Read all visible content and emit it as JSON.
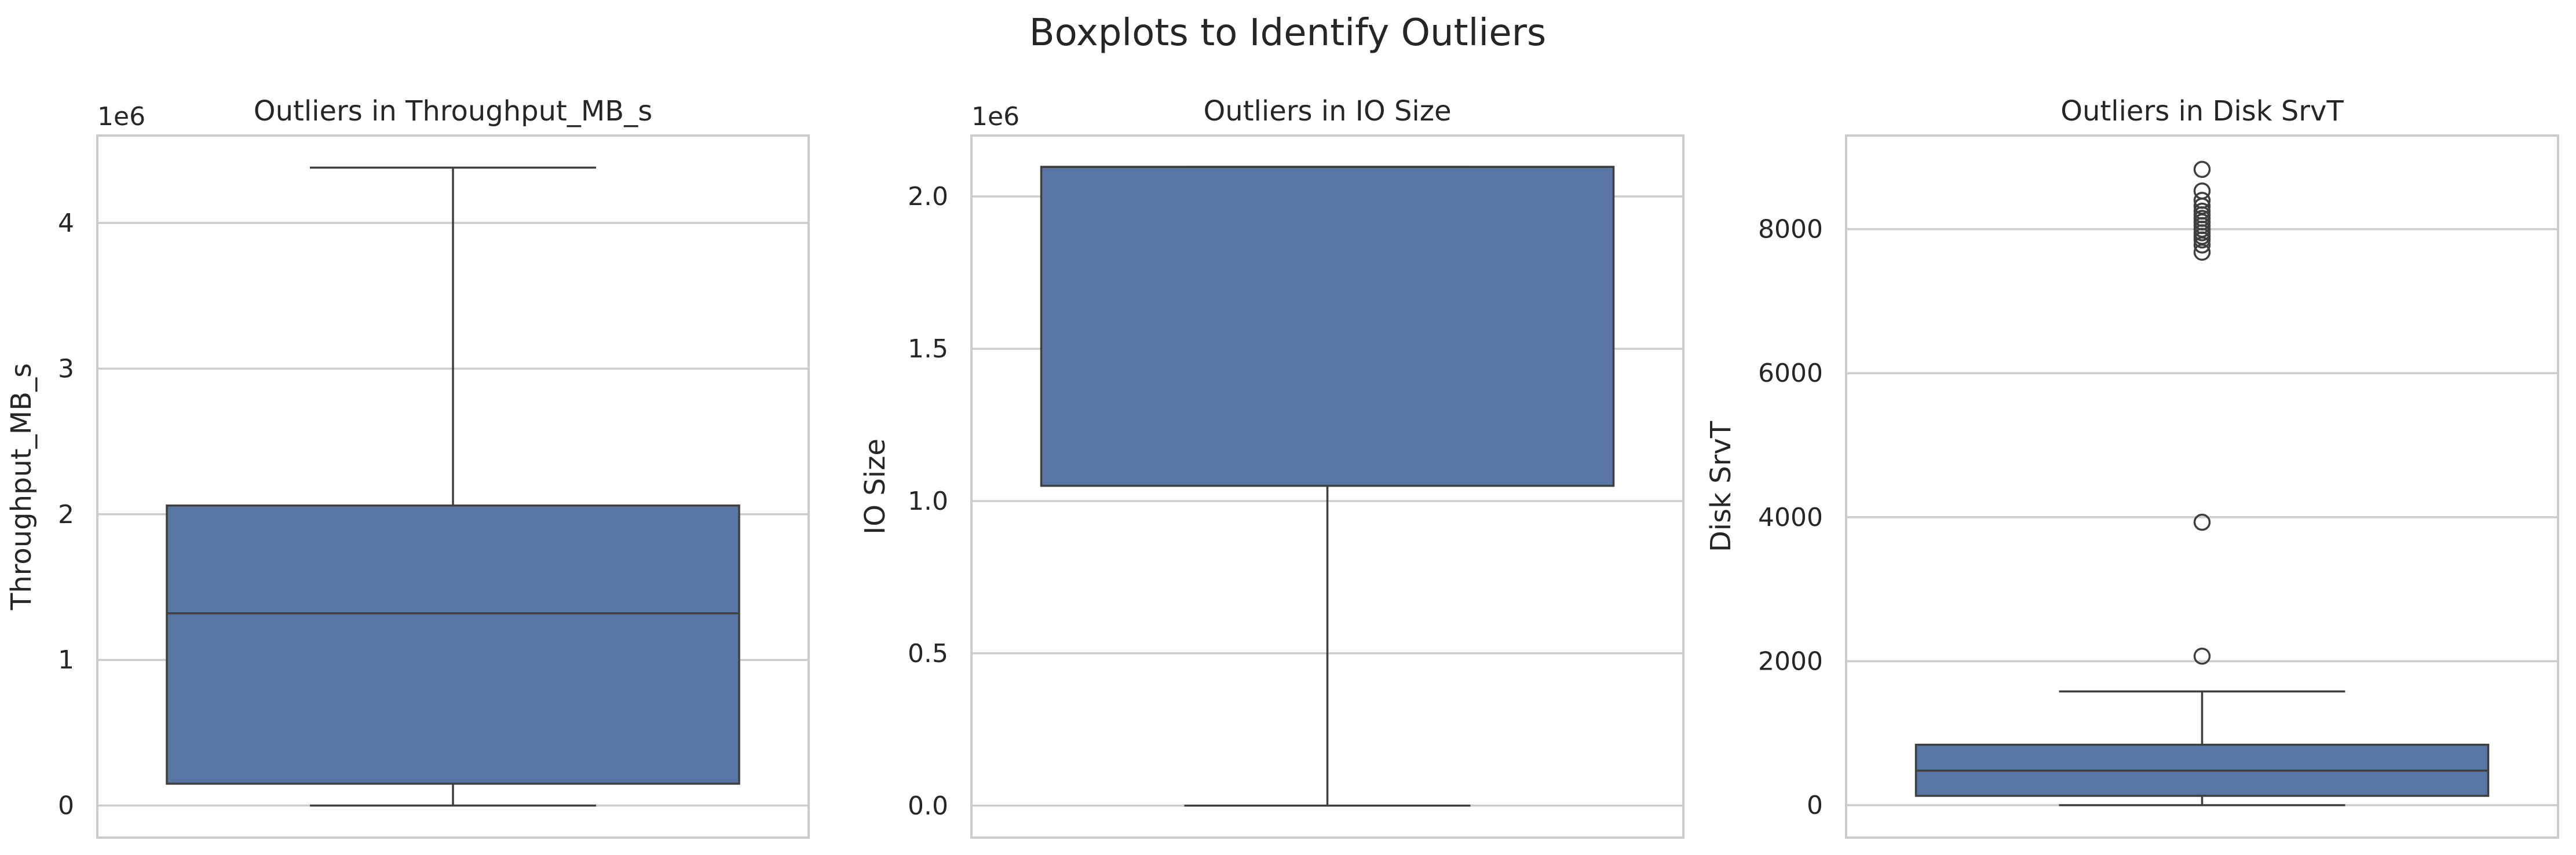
{
  "chart_data": {
    "type": "boxplot",
    "title": "Boxplots to Identify Outliers",
    "panels": [
      {
        "title": "Outliers in Throughput_MB_s",
        "ylabel": "Throughput_MB_s",
        "multiplier_label": "1e6",
        "ylim": [
          -220000,
          4600000
        ],
        "yticks": [
          0,
          1000000,
          2000000,
          3000000,
          4000000
        ],
        "ytick_labels": [
          "0",
          "1",
          "2",
          "3",
          "4"
        ],
        "grid": true,
        "box": {
          "whislo": 0,
          "q1": 150000,
          "med": 1320000,
          "q3": 2060000,
          "whishi": 4380000,
          "fliers": []
        }
      },
      {
        "title": "Outliers in IO Size",
        "ylabel": "IO Size",
        "multiplier_label": "1e6",
        "ylim": [
          -105000,
          2200000
        ],
        "yticks": [
          0,
          500000,
          1000000,
          1500000,
          2000000
        ],
        "ytick_labels": [
          "0.0",
          "0.5",
          "1.0",
          "1.5",
          "2.0"
        ],
        "grid": true,
        "box": {
          "whislo": 0,
          "q1": 1050000,
          "med": 2097152,
          "q3": 2097152,
          "whishi": 2097152,
          "fliers": []
        }
      },
      {
        "title": "Outliers in Disk SrvT",
        "ylabel": "Disk SrvT",
        "multiplier_label": "",
        "ylim": [
          -450,
          9300
        ],
        "yticks": [
          0,
          2000,
          4000,
          6000,
          8000
        ],
        "ytick_labels": [
          "0",
          "2000",
          "4000",
          "6000",
          "8000"
        ],
        "grid": true,
        "box": {
          "whislo": 0,
          "q1": 130,
          "med": 480,
          "q3": 840,
          "whishi": 1580,
          "fliers": [
            2070,
            3930,
            7680,
            7780,
            7850,
            7900,
            7950,
            8000,
            8050,
            8100,
            8150,
            8200,
            8250,
            8320,
            8400,
            8530,
            8830
          ]
        }
      }
    ]
  }
}
